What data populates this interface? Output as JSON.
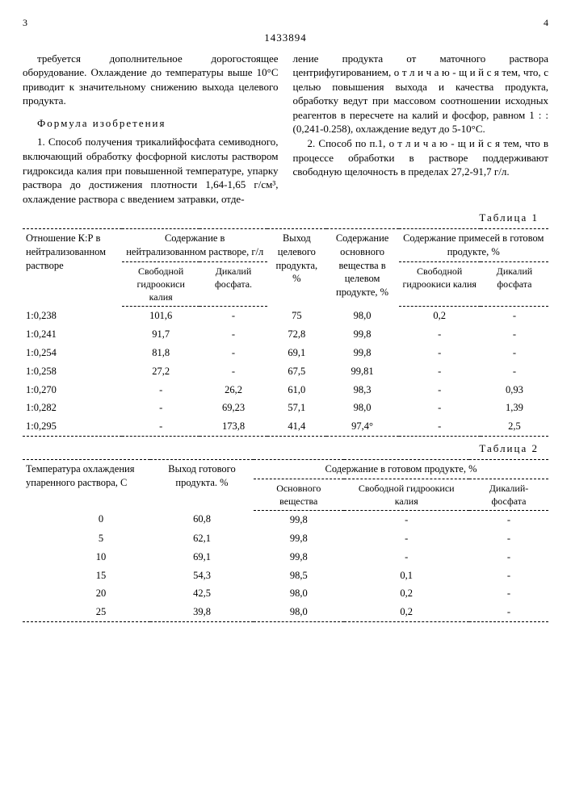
{
  "page_left": "3",
  "page_right": "4",
  "doc_number": "1433894",
  "left_col_text": "требуется дополнительное дорогостоящее оборудование. Охлаждение до температуры выше 10°С приводит к значительному снижению выхода целевого продукта.",
  "formula_title": "Формула изобретения",
  "claim1": "1. Способ получения трикалийфосфата семиводного, включающий обработку фосфорной кислоты раствором гидроксида калия при повышенной температуре, упарку раствора до достижения плотности 1,64-1,65 г/см³, охлаждение раствора с введением затравки, отде-",
  "right_col_text_a": "ление продукта от маточного раствора центрифугированием, о т л и ч а ю - щ и й с я  тем, что, с целью повышения выхода и качества продукта, обработку ведут при массовом соотношении исходных реагентов в пересчете на калий и фосфор, равном 1 : :(0,241-0.258), охлаждение ведут до 5-10°С.",
  "claim2": "2. Способ по п.1, о т л и ч а ю - щ и й с я  тем, что в процессе обработки в  растворе  поддерживают свободную щелочность в пределах 27,2-91,7 г/л.",
  "table1_caption": "Таблица 1",
  "table1": {
    "h1": "Отношение К:Р в нейтрализованном растворе",
    "h2": "Содержание в нейтрализованном растворе, г/л",
    "h3": "Выход целевого продукта, %",
    "h4": "Содержание основного вещества в целевом продукте, %",
    "h5": "Содержание примесей в готовом продукте, %",
    "sh2a": "Свободной гидроокиси калия",
    "sh2b": "Дикалий фосфата.",
    "sh5a": "Свободной гидроокиси калия",
    "sh5b": "Дикалий фосфата",
    "rows": [
      [
        "1:0,238",
        "101,6",
        "-",
        "75",
        "98,0",
        "0,2",
        "-"
      ],
      [
        "1:0,241",
        "91,7",
        "-",
        "72,8",
        "99,8",
        "-",
        "-"
      ],
      [
        "1:0,254",
        "81,8",
        "-",
        "69,1",
        "99,8",
        "-",
        "-"
      ],
      [
        "1:0,258",
        "27,2",
        "-",
        "67,5",
        "99,81",
        "-",
        "-"
      ],
      [
        "1:0,270",
        "-",
        "26,2",
        "61,0",
        "98,3",
        "-",
        "0,93"
      ],
      [
        "1:0,282",
        "-",
        "69,23",
        "57,1",
        "98,0",
        "-",
        "1,39"
      ],
      [
        "1:0,295",
        "-",
        "173,8",
        "41,4",
        "97,4°",
        "-",
        "2,5"
      ]
    ]
  },
  "table2_caption": "Таблица 2",
  "table2": {
    "h1": "Температура охлаждения упаренного раствора,   С",
    "h2": "Выход готового продукта. %",
    "h3": "Содержание в готовом продукте, %",
    "sh3a": "Основного вещества",
    "sh3b": "Свободной гидроокиси калия",
    "sh3c": "Дикалий-фосфата",
    "rows": [
      [
        "0",
        "60,8",
        "99,8",
        "-",
        "-"
      ],
      [
        "5",
        "62,1",
        "99,8",
        "-",
        "-"
      ],
      [
        "10",
        "69,1",
        "99,8",
        "-",
        "-"
      ],
      [
        "15",
        "54,3",
        "98,5",
        "0,1",
        "-"
      ],
      [
        "20",
        "42,5",
        "98,0",
        "0,2",
        "-"
      ],
      [
        "25",
        "39,8",
        "98,0",
        "0,2",
        "-"
      ]
    ]
  }
}
